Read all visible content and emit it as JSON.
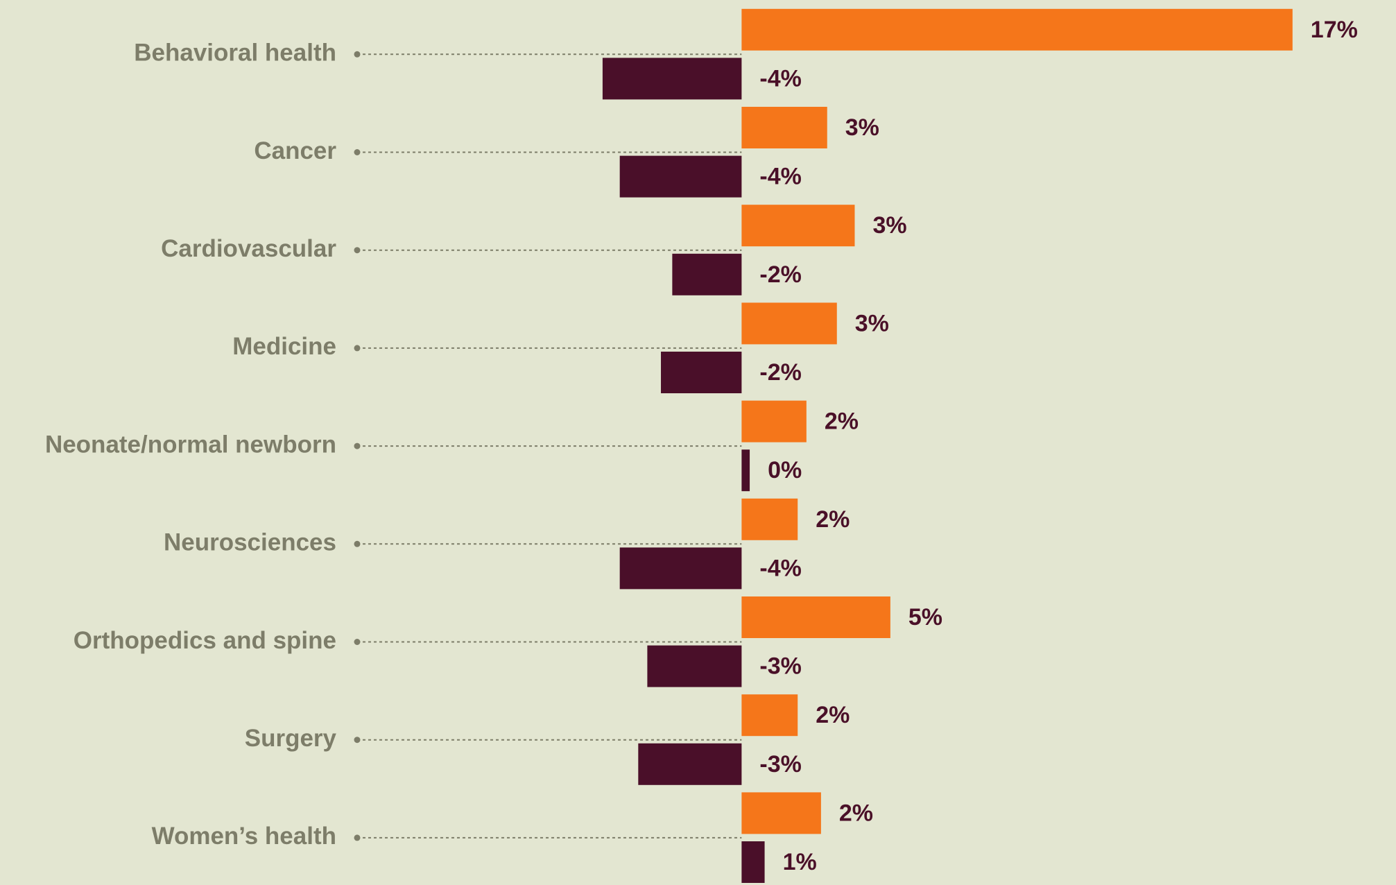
{
  "chart_data": {
    "type": "hbar",
    "categories": [
      "Behavioral health",
      "Cancer",
      "Cardiovascular",
      "Medicine",
      "Neonate/normal newborn",
      "Neurosciences",
      "Orthopedics and spine",
      "Surgery",
      "Women’s health"
    ],
    "series": [
      {
        "color": "#f5761a",
        "values": [
          17.0,
          2.64,
          3.49,
          2.94,
          2.0,
          1.73,
          4.59,
          1.73,
          2.45
        ],
        "value_labels": [
          "17%",
          "3%",
          "3%",
          "3%",
          "2%",
          "2%",
          "5%",
          "2%",
          "2%"
        ]
      },
      {
        "color": "#4a0f29",
        "values": [
          -4.29,
          -3.76,
          -2.14,
          -2.49,
          0.25,
          -3.76,
          -2.91,
          -3.19,
          0.71
        ],
        "value_labels": [
          "-4%",
          "-4%",
          "-2%",
          "-2%",
          "0%",
          "-4%",
          "-3%",
          "-3%",
          "1%"
        ]
      }
    ],
    "xlim": [
      -6,
      20
    ]
  }
}
